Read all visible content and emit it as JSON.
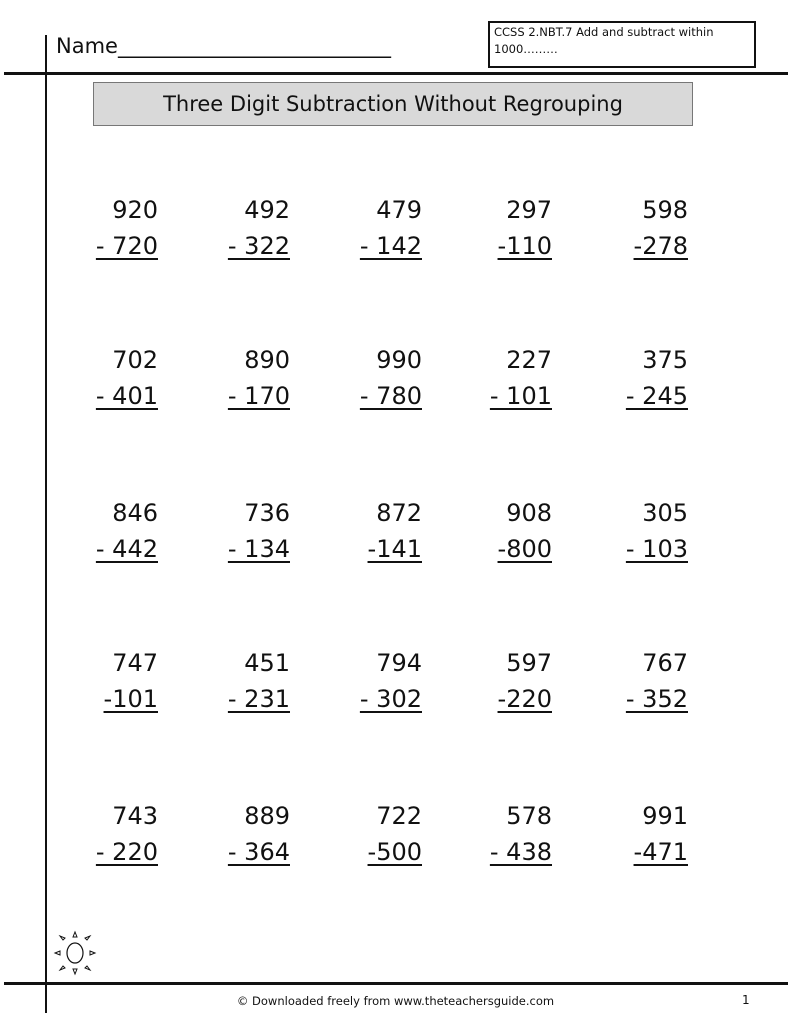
{
  "header": {
    "name_label": "Name__________________________",
    "standard": "CCSS  2.NBT.7  Add and subtract within 1000………"
  },
  "title": "Three Digit Subtraction Without  Regrouping",
  "problems": [
    [
      {
        "top": "920",
        "bottom": "- 720"
      },
      {
        "top": "492",
        "bottom": "- 322"
      },
      {
        "top": "479",
        "bottom": "- 142"
      },
      {
        "top": "297",
        "bottom": "-110"
      },
      {
        "top": "598",
        "bottom": "-278"
      }
    ],
    [
      {
        "top": "702",
        "bottom": "- 401"
      },
      {
        "top": "890",
        "bottom": "- 170"
      },
      {
        "top": "990",
        "bottom": "- 780"
      },
      {
        "top": "227",
        "bottom": "- 101"
      },
      {
        "top": "375",
        "bottom": "- 245"
      }
    ],
    [
      {
        "top": "846",
        "bottom": "- 442"
      },
      {
        "top": "736",
        "bottom": "- 134"
      },
      {
        "top": "872",
        "bottom": "-141"
      },
      {
        "top": "908",
        "bottom": "-800"
      },
      {
        "top": "305",
        "bottom": "- 103"
      }
    ],
    [
      {
        "top": "747",
        "bottom": "-101"
      },
      {
        "top": "451",
        "bottom": "- 231"
      },
      {
        "top": "794",
        "bottom": "- 302"
      },
      {
        "top": "597",
        "bottom": "-220"
      },
      {
        "top": "767",
        "bottom": "- 352"
      }
    ],
    [
      {
        "top": "743",
        "bottom": "- 220"
      },
      {
        "top": "889",
        "bottom": "- 364"
      },
      {
        "top": "722",
        "bottom": "-500"
      },
      {
        "top": "578",
        "bottom": "- 438"
      },
      {
        "top": "991",
        "bottom": "-471"
      }
    ]
  ],
  "footer": {
    "text": "© Downloaded freely from www.theteachersguide.com",
    "page_number": "1"
  },
  "icons": {
    "decoration": "sun-icon"
  }
}
